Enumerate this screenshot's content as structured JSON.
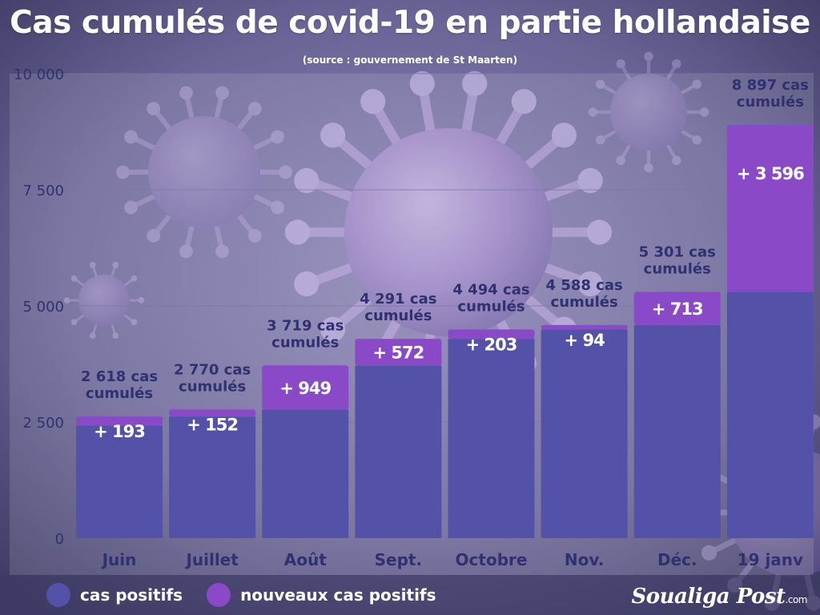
{
  "title": "Cas cumulés de covid-19 en partie hollandaise",
  "subtitle": "(source : gouvernement de St Maarten)",
  "legend": {
    "positive_label": "cas positifs",
    "new_label": "nouveaux cas positifs"
  },
  "logo": {
    "name": "Soualiga Post",
    "suffix": ".com"
  },
  "colors": {
    "base": "#5352a8",
    "increment": "#8a4ac8",
    "text": "#2f3170",
    "grid": "#7a78a8"
  },
  "chart_data": {
    "type": "bar",
    "stacked": true,
    "categories": [
      "Juin",
      "Juillet",
      "Août",
      "Sept.",
      "Octobre",
      "Nov.",
      "Déc.",
      "19 janv"
    ],
    "series": [
      {
        "name": "cas positifs",
        "values": [
          2425,
          2618,
          2770,
          3719,
          4291,
          4494,
          4588,
          5301
        ]
      },
      {
        "name": "nouveaux cas positifs",
        "values": [
          193,
          152,
          949,
          572,
          203,
          94,
          713,
          3596
        ]
      }
    ],
    "increment_labels": [
      "+ 193",
      "+ 152",
      "+ 949",
      "+ 572",
      "+ 203",
      "+ 94",
      "+ 713",
      "+ 3 596"
    ],
    "total_labels": [
      [
        "2 618 cas",
        "cumulés"
      ],
      [
        "2 770 cas",
        "cumulés"
      ],
      [
        "3  719 cas",
        "cumulés"
      ],
      [
        "4 291 cas",
        "cumulés"
      ],
      [
        "4 494 cas",
        "cumulés"
      ],
      [
        "4 588 cas",
        "cumulés"
      ],
      [
        "5 301 cas",
        "cumulés"
      ],
      [
        "8 897 cas",
        "cumulés"
      ]
    ],
    "yticks": [
      0,
      2500,
      5000,
      7500,
      10000
    ],
    "ytick_labels": [
      "0",
      "2 500",
      "5 000",
      "7 500",
      "10 000"
    ],
    "ylim": [
      0,
      10000
    ],
    "grid": true,
    "legend_position": "bottom-left"
  }
}
